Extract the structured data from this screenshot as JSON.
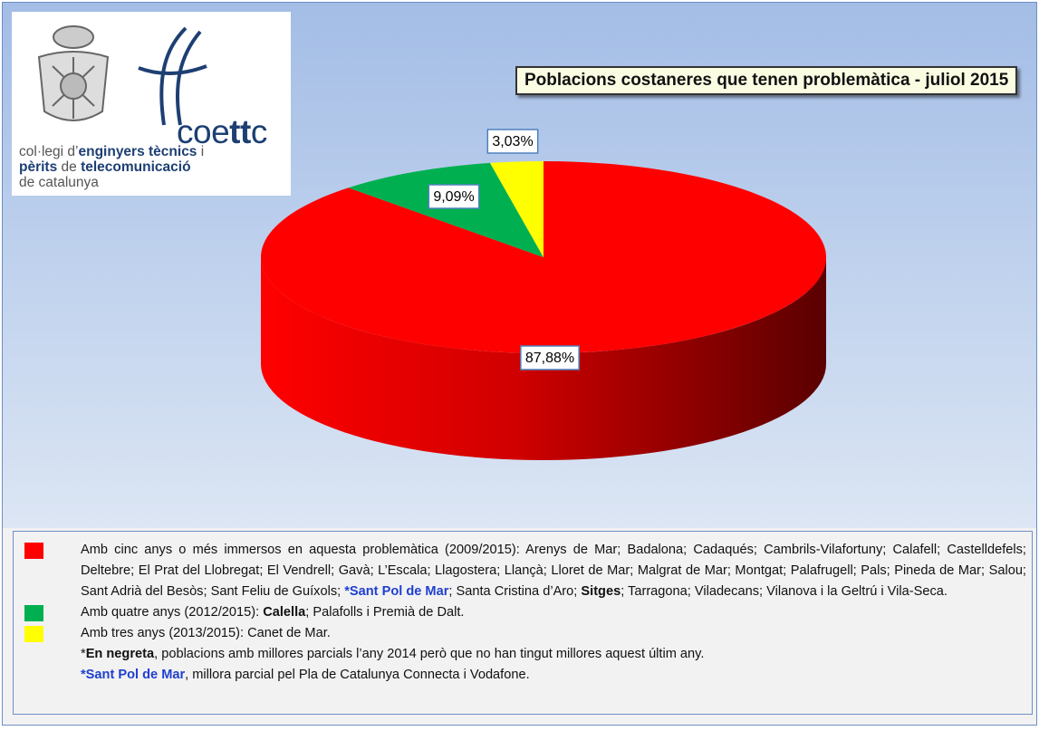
{
  "logo": {
    "name": [
      {
        "text": "coe"
      },
      {
        "text": "tt",
        "bold": true
      },
      {
        "text": "c"
      }
    ],
    "lines": [
      [
        {
          "text": "col·legi d’"
        },
        {
          "text": "enginyers tècnics",
          "bold": true
        },
        {
          "text": " i"
        }
      ],
      [
        {
          "text": "pèrits",
          "bold": true
        },
        {
          "text": " de "
        },
        {
          "text": "telecomunicació",
          "bold": true
        }
      ],
      [
        {
          "text": "de catalunya"
        }
      ]
    ]
  },
  "chart_data": {
    "type": "pie3d",
    "title": "Poblacions costaneres que tenen problemàtica - juliol 2015",
    "values": [
      87.88,
      9.09,
      3.03
    ],
    "value_labels": [
      "87,88%",
      "9,09%",
      "3,03%"
    ],
    "colors": [
      "#ff0000",
      "#00b050",
      "#ffff00"
    ],
    "legend": [
      {
        "color": "#ff0000",
        "runs": [
          {
            "text": "Amb cinc anys o més immersos en aquesta problemàtica (2009/2015): Arenys de Mar; Badalona; Cadaqués; Cambrils-Vilafortuny; Calafell; Castelldefels; Deltebre; El Prat del Llobregat; El Vendrell; Gavà; L’Escala; Llagostera; Llançà; Lloret de Mar; Malgrat de Mar; Montgat; Palafrugell; Pals; Pineda de Mar; Salou; Sant Adrià del Besòs; Sant Feliu de Guíxols; "
          },
          {
            "text": "*Sant Pol de Mar",
            "bold": true,
            "color": "#1f3fd0"
          },
          {
            "text": "; Santa Cristina d’Aro; "
          },
          {
            "text": "Sitges",
            "bold": true
          },
          {
            "text": "; Tarragona; Viladecans; Vilanova i la Geltrú i Vila-Seca."
          }
        ]
      },
      {
        "color": "#00b050",
        "runs": [
          {
            "text": "Amb quatre anys (2012/2015): "
          },
          {
            "text": "Calella",
            "bold": true
          },
          {
            "text": "; Palafolls i Premià de Dalt."
          }
        ]
      },
      {
        "color": "#ffff00",
        "runs": [
          {
            "text": "Amb tres anys (2013/2015): Canet de Mar."
          }
        ]
      }
    ],
    "notes": [
      [
        {
          "text": "*"
        },
        {
          "text": "En negreta",
          "bold": true
        },
        {
          "text": ", poblacions amb millores parcials l’any 2014 però que no han tingut millores aquest últim any."
        }
      ],
      [
        {
          "text": "*Sant Pol de Mar",
          "bold": true,
          "color": "#1f3fd0"
        },
        {
          "text": ", millora parcial pel Pla de Catalunya Connecta i Vodafone."
        }
      ]
    ]
  }
}
